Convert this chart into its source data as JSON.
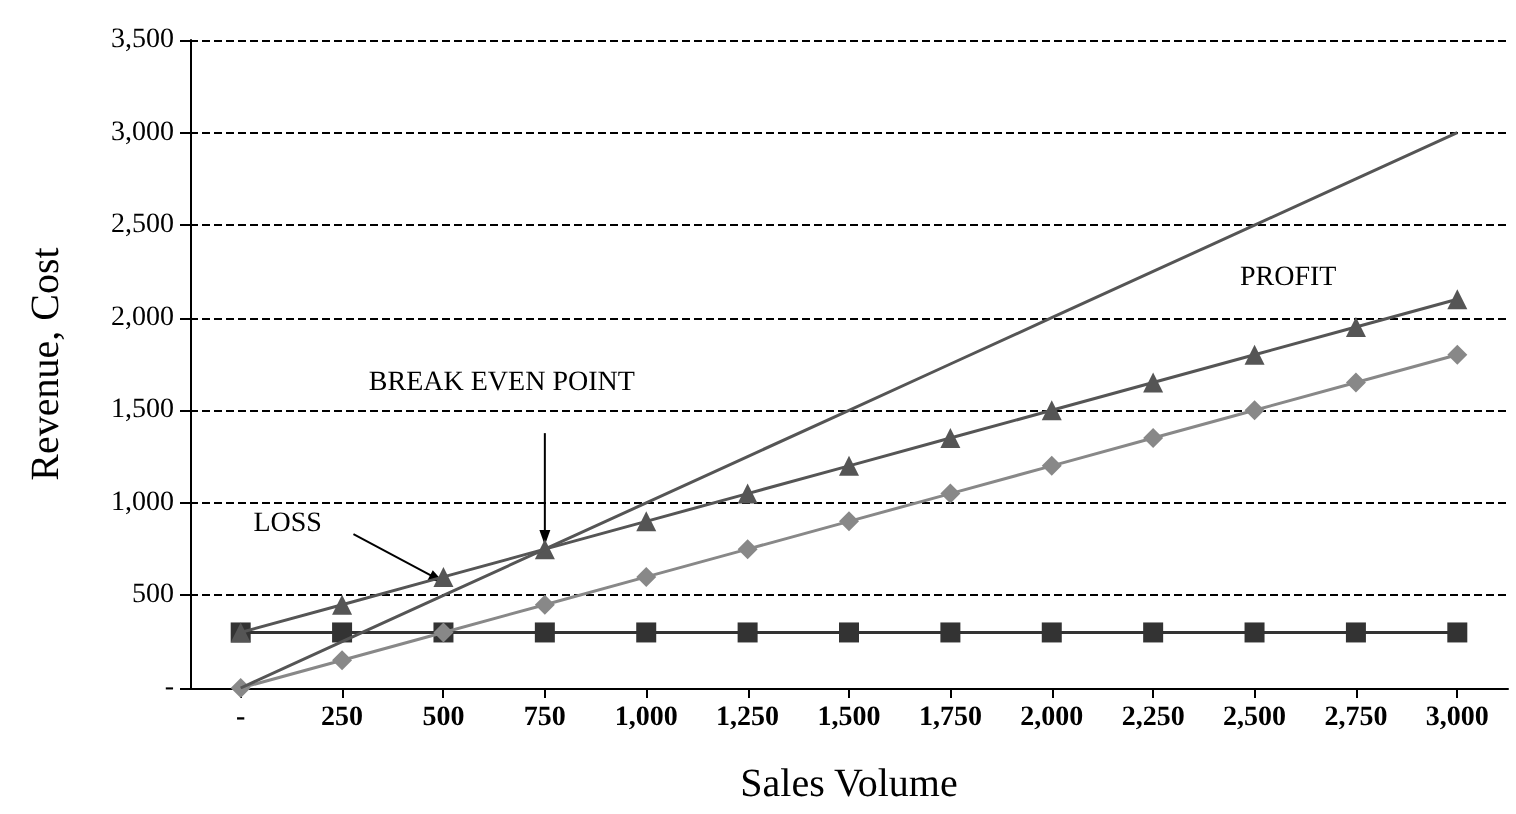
{
  "chart_data": {
    "type": "line",
    "xlabel": "Sales Volume",
    "ylabel": "Revenue, Cost",
    "categories": [
      "-",
      "250",
      "500",
      "750",
      "1,000",
      "1,250",
      "1,500",
      "1,750",
      "2,000",
      "2,250",
      "2,500",
      "2,750",
      "3,000"
    ],
    "series": [
      {
        "color": "#555555",
        "marker": "none",
        "values": [
          0,
          250,
          500,
          750,
          1000,
          1250,
          1500,
          1750,
          2000,
          2250,
          2500,
          2750,
          3000
        ]
      },
      {
        "color": "#555555",
        "marker": "triangle",
        "values": [
          300,
          450,
          600,
          750,
          900,
          1050,
          1200,
          1350,
          1500,
          1650,
          1800,
          1950,
          2100
        ]
      },
      {
        "color": "#888888",
        "marker": "diamond",
        "values": [
          0,
          150,
          300,
          450,
          600,
          750,
          900,
          1050,
          1200,
          1350,
          1500,
          1650,
          1800
        ]
      },
      {
        "color": "#333333",
        "marker": "square",
        "values": [
          300,
          300,
          300,
          300,
          300,
          300,
          300,
          300,
          300,
          300,
          300,
          300,
          300
        ]
      }
    ],
    "ylim": [
      0,
      3500
    ],
    "yticks": [
      {
        "value": 0,
        "label": "-"
      },
      500,
      {
        "value": 1000,
        "label": "1,000"
      },
      {
        "value": 1500,
        "label": "1,500"
      },
      {
        "value": 2000,
        "label": "2,000"
      },
      {
        "value": 2500,
        "label": "2,500"
      },
      {
        "value": 3000,
        "label": "3,000"
      },
      {
        "value": 3500,
        "label": "3,500"
      }
    ],
    "grid": "y",
    "annotations": [
      {
        "text": "PROFIT"
      },
      {
        "text": "BREAK EVEN POINT",
        "x": "750",
        "y": 750
      },
      {
        "text": "LOSS",
        "x": "500",
        "y": 550
      }
    ]
  }
}
